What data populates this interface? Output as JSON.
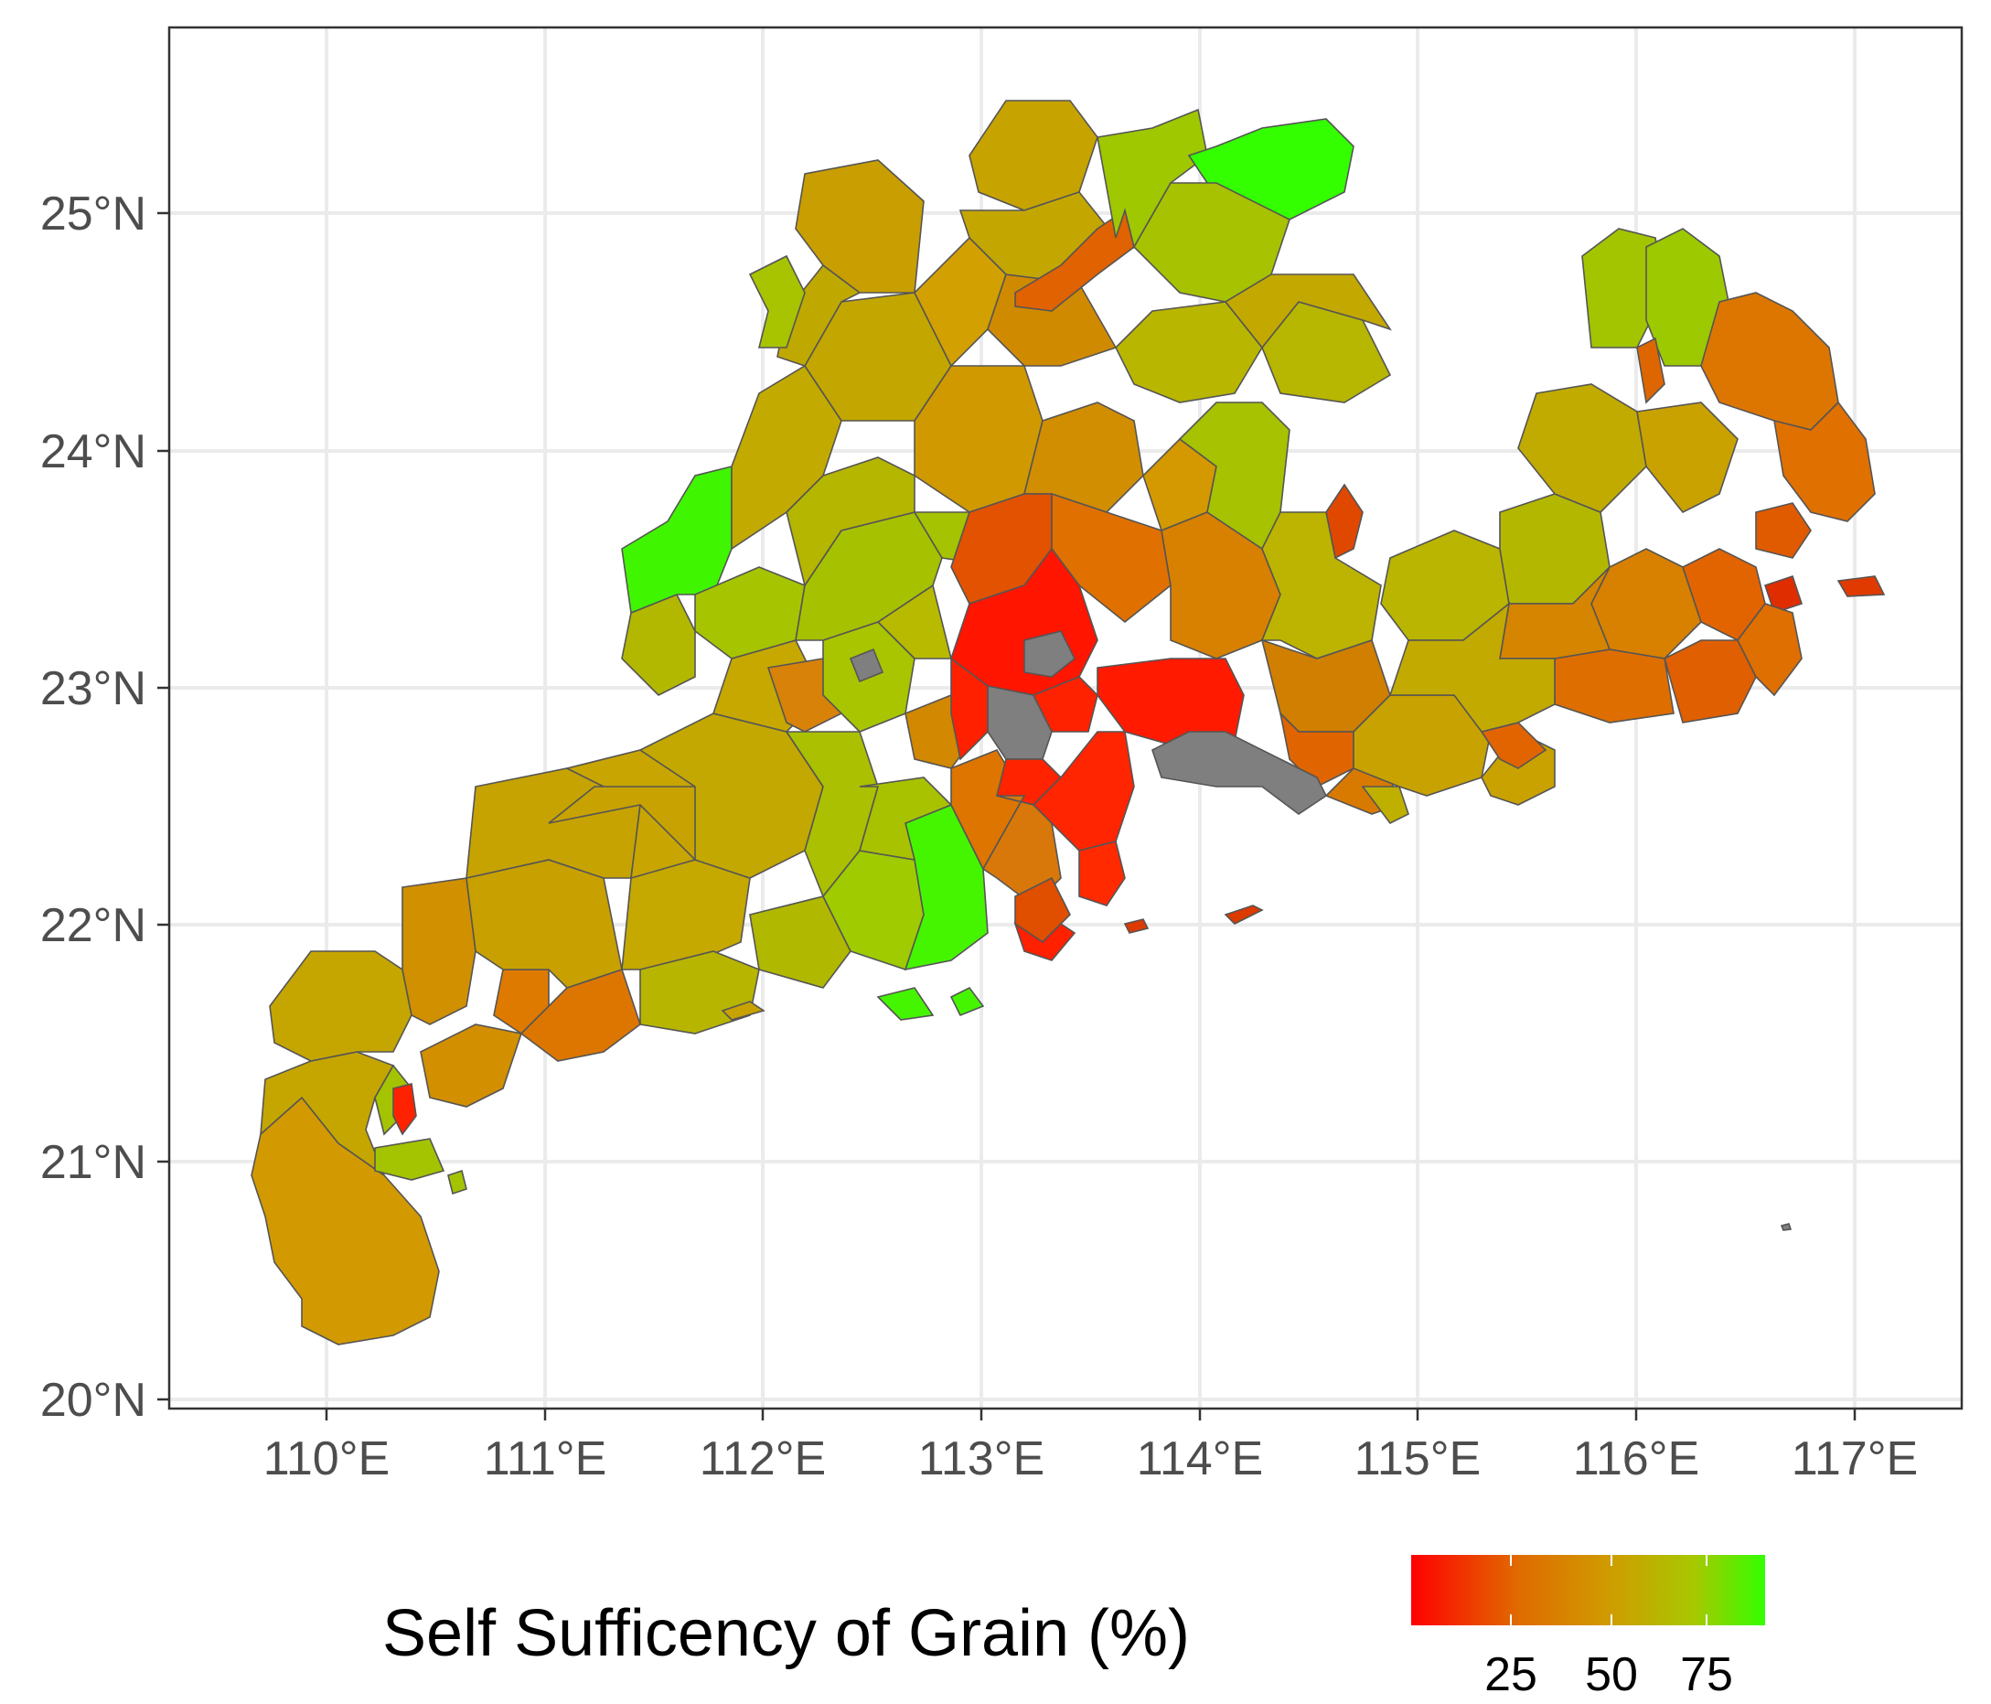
{
  "map": {
    "x_axis": {
      "ticks": [
        "110°E",
        "111°E",
        "112°E",
        "113°E",
        "114°E",
        "115°E",
        "116°E",
        "117°E"
      ]
    },
    "y_axis": {
      "ticks": [
        "25°N",
        "24°N",
        "23°N",
        "22°N",
        "21°N",
        "20°N"
      ]
    },
    "grid": true,
    "colors": {
      "low": "#ff0000",
      "mid": "#d09a00",
      "high": "#33ff00",
      "missing": "#7f7f7f",
      "grid": "#ebebeb"
    }
  },
  "legend": {
    "title": "Self Sufficency of Grain (%)",
    "ticks": [
      "25",
      "50",
      "75"
    ],
    "position": "bottom",
    "gradient": [
      "#ff0000",
      "#e06a00",
      "#d09a00",
      "#a8c800",
      "#33ff00"
    ]
  }
}
